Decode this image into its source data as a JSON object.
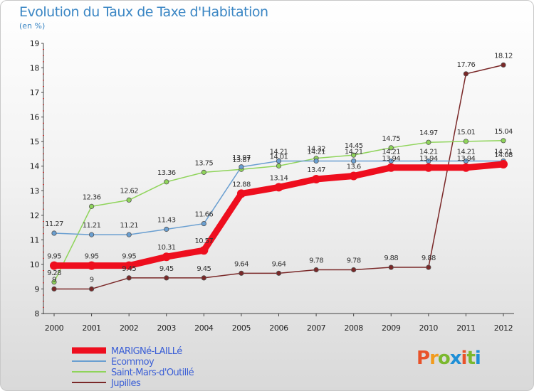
{
  "header": {
    "title": "Evolution du Taux de Taxe d'Habitation",
    "subtitle": "(en %)"
  },
  "logo": {
    "text": "Proxiti",
    "colors": [
      "#e8522a",
      "#f29b1d",
      "#7bb82e",
      "#1f8fd6",
      "#e8522a",
      "#7bb82e",
      "#1f8fd6"
    ]
  },
  "chart_data": {
    "type": "line",
    "x": [
      "2000",
      "2001",
      "2002",
      "2003",
      "2004",
      "2005",
      "2006",
      "2007",
      "2008",
      "2009",
      "2010",
      "2011",
      "2012"
    ],
    "ylim": [
      8,
      19
    ],
    "yticks": [
      "8",
      "9",
      "10",
      "11",
      "12",
      "13",
      "14",
      "15",
      "16",
      "17",
      "18",
      "19"
    ],
    "grid": false,
    "legend_position": "bottom-left",
    "series": [
      {
        "name": "MARIGNé-LAILLé",
        "color": "#ee0e1e",
        "values": [
          9.95,
          9.95,
          9.95,
          10.31,
          10.57,
          12.88,
          13.14,
          13.47,
          13.6,
          13.94,
          13.94,
          13.94,
          14.08
        ],
        "labels": [
          "9.95",
          "9.95",
          "9.95",
          "10.31",
          "10.57",
          "12.88",
          "13.14",
          "13.47",
          "13.6",
          "13.94",
          "13.94",
          "13.94",
          "14.08"
        ]
      },
      {
        "name": "Ecommoy",
        "color": "#6a9fd1",
        "values": [
          11.27,
          11.21,
          11.21,
          11.43,
          11.66,
          13.97,
          14.21,
          14.21,
          14.21,
          14.21,
          14.21,
          14.21,
          14.21
        ],
        "labels": [
          "11.27",
          "11.21",
          "11.21",
          "11.43",
          "11.66",
          "13.97",
          "14.21",
          "14.21",
          "14.21",
          "14.21",
          "14.21",
          "14.21",
          "14.21"
        ]
      },
      {
        "name": "Saint-Mars-d'Outillé",
        "color": "#8fd45a",
        "values": [
          9.28,
          12.36,
          12.62,
          13.36,
          13.75,
          13.87,
          14.01,
          14.32,
          14.45,
          14.75,
          14.97,
          15.01,
          15.04
        ],
        "labels": [
          "9.28",
          "12.36",
          "12.62",
          "13.36",
          "13.75",
          "13.87",
          "14.01",
          "14.32",
          "14.45",
          "14.75",
          "14.97",
          "15.01",
          "15.04"
        ]
      },
      {
        "name": "Jupilles",
        "color": "#7a2828",
        "values": [
          9,
          9,
          9.45,
          9.45,
          9.45,
          9.64,
          9.64,
          9.78,
          9.78,
          9.88,
          9.88,
          17.76,
          18.12
        ],
        "labels": [
          "9",
          "9",
          "9.45",
          "9.45",
          "9.45",
          "9.64",
          "9.64",
          "9.78",
          "9.78",
          "9.88",
          "9.88",
          "17.76",
          "18.12"
        ]
      }
    ]
  }
}
